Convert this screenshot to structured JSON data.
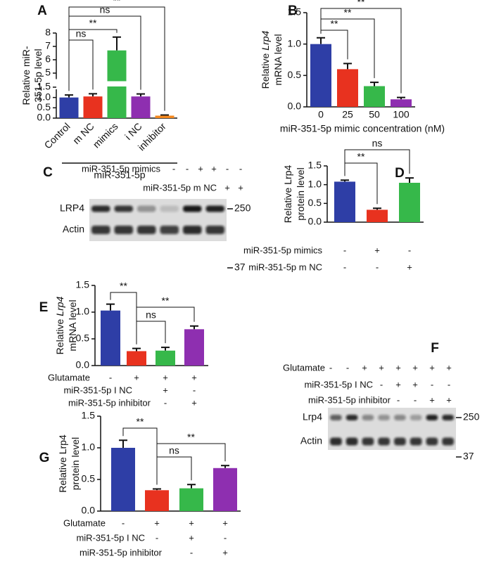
{
  "chart_data": [
    {
      "panel": "A",
      "type": "bar",
      "ylabel": [
        "Relative miR-",
        "351-5p level"
      ],
      "categories": [
        "Control",
        "m NC",
        "mimics",
        "i NC",
        "inhibitor"
      ],
      "values": [
        1.0,
        1.05,
        6.7,
        1.05,
        0.12
      ],
      "errors": [
        0.12,
        0.13,
        1.0,
        0.12,
        0.03
      ],
      "colors": [
        "#2e3ea6",
        "#e8321f",
        "#36b84a",
        "#8e2fb0",
        "#f5891f"
      ],
      "ylim": [
        0,
        8
      ],
      "ybreak": [
        1.5,
        4.5
      ],
      "yticks": [
        {
          "value": 0,
          "label": "0.0"
        },
        {
          "value": 0.5,
          "label": "0.5"
        },
        {
          "value": 1,
          "label": "1.0"
        },
        {
          "value": 1.5,
          "label": "1.5"
        },
        5,
        6,
        7,
        8
      ],
      "group_label": "miR-351-5p",
      "annotations": [
        "ns",
        "**",
        "ns",
        "**"
      ]
    },
    {
      "panel": "B",
      "type": "bar",
      "ylabel": [
        "Relative",
        "Lrp4",
        "mRNA level"
      ],
      "categories": [
        "0",
        "25",
        "50",
        "100"
      ],
      "xlabel": "miR-351-5p mimic concentration (nM)",
      "values": [
        1.0,
        0.6,
        0.33,
        0.12
      ],
      "errors": [
        0.1,
        0.09,
        0.06,
        0.03
      ],
      "colors": [
        "#2e3ea6",
        "#e8321f",
        "#36b84a",
        "#8e2fb0"
      ],
      "ylim": [
        0,
        1.5
      ],
      "yticks": [
        {
          "value": 0,
          "label": "0.0"
        },
        {
          "value": 0.5,
          "label": "0.5"
        },
        {
          "value": 1,
          "label": "1.0"
        },
        {
          "value": 1.5,
          "label": "1.5"
        }
      ],
      "annotations": [
        "**",
        "**",
        "**"
      ]
    },
    {
      "panel": "D",
      "type": "bar",
      "ylabel": [
        "Relative Lrp4",
        "protein level"
      ],
      "conditions": [
        {
          "label": "miR-351-5p mimics",
          "signs": [
            "-",
            "+",
            "-"
          ]
        },
        {
          "label": "miR-351-5p m NC",
          "signs": [
            "-",
            "-",
            "+"
          ]
        }
      ],
      "values": [
        1.08,
        0.33,
        1.05
      ],
      "errors": [
        0.04,
        0.04,
        0.13
      ],
      "colors": [
        "#2e3ea6",
        "#e8321f",
        "#36b84a"
      ],
      "ylim": [
        0,
        1.5
      ],
      "yticks": [
        {
          "value": 0,
          "label": "0.0"
        },
        {
          "value": 0.5,
          "label": "0.5"
        },
        {
          "value": 1,
          "label": "1.0"
        },
        {
          "value": 1.5,
          "label": "1.5"
        }
      ],
      "annotations": [
        "**",
        "ns"
      ]
    },
    {
      "panel": "E",
      "type": "bar",
      "ylabel": [
        "Relative",
        "Lrp4",
        "mRNA level"
      ],
      "conditions": [
        {
          "label": "Glutamate",
          "signs": [
            "-",
            "+",
            "+",
            "+"
          ]
        },
        {
          "label": "miR-351-5p I NC",
          "signs": [
            null,
            null,
            "+",
            "-"
          ]
        },
        {
          "label": "miR-351-5p inhibitor",
          "signs": [
            null,
            null,
            "-",
            "+"
          ]
        }
      ],
      "values": [
        1.03,
        0.27,
        0.28,
        0.68
      ],
      "errors": [
        0.12,
        0.05,
        0.06,
        0.06
      ],
      "colors": [
        "#2e3ea6",
        "#e8321f",
        "#36b84a",
        "#8e2fb0"
      ],
      "ylim": [
        0,
        1.5
      ],
      "yticks": [
        {
          "value": 0,
          "label": "0.0"
        },
        {
          "value": 0.5,
          "label": "0.5"
        },
        {
          "value": 1,
          "label": "1.0"
        },
        {
          "value": 1.5,
          "label": "1.5"
        }
      ],
      "annotations": [
        "**",
        "ns",
        "**"
      ]
    },
    {
      "panel": "G",
      "type": "bar",
      "ylabel": [
        "Relative Lrp4",
        "protein level"
      ],
      "conditions": [
        {
          "label": "Glutamate",
          "signs": [
            "-",
            "+",
            "+",
            "+"
          ]
        },
        {
          "label": "miR-351-5p I NC",
          "signs": [
            null,
            "-",
            "+",
            "-"
          ]
        },
        {
          "label": "miR-351-5p inhibitor",
          "signs": [
            null,
            null,
            "-",
            "+"
          ]
        }
      ],
      "values": [
        1.0,
        0.33,
        0.36,
        0.68
      ],
      "errors": [
        0.12,
        0.02,
        0.06,
        0.04
      ],
      "colors": [
        "#2e3ea6",
        "#e8321f",
        "#36b84a",
        "#8e2fb0"
      ],
      "ylim": [
        0,
        1.5
      ],
      "yticks": [
        {
          "value": 0,
          "label": "0.0"
        },
        {
          "value": 0.5,
          "label": "0.5"
        },
        {
          "value": 1,
          "label": "1.0"
        },
        {
          "value": 1.5,
          "label": "1.5"
        }
      ],
      "annotations": [
        "**",
        "ns",
        "**"
      ]
    }
  ],
  "blots": [
    {
      "panel": "C",
      "conditions": [
        {
          "label": "miR-351-5p mimics",
          "signs": [
            "-",
            "-",
            "+",
            "+",
            "-",
            "-"
          ]
        },
        {
          "label": "miR-351-5p m NC",
          "signs": [
            null,
            null,
            null,
            null,
            "+",
            "+"
          ]
        }
      ],
      "band_labels": [
        "LRP4",
        "Actin"
      ],
      "markers": [
        "250",
        "37"
      ]
    },
    {
      "panel": "F",
      "conditions": [
        {
          "label": "Glutamate",
          "signs": [
            "-",
            "-",
            "+",
            "+",
            "+",
            "+",
            "+",
            "+"
          ]
        },
        {
          "label": "miR-351-5p I NC",
          "signs": [
            null,
            null,
            null,
            "-",
            "+",
            "+",
            "-",
            "-"
          ]
        },
        {
          "label": "miR-351-5p inhibitor",
          "signs": [
            null,
            null,
            null,
            null,
            "-",
            "-",
            "+",
            "+"
          ]
        }
      ],
      "band_labels": [
        "Lrp4",
        "Actin"
      ],
      "markers": [
        "250",
        "37"
      ]
    }
  ]
}
